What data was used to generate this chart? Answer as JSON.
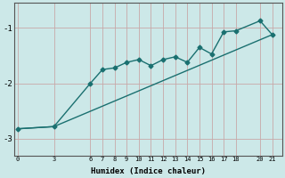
{
  "xlabel": "Humidex (Indice chaleur)",
  "bg_color": "#cce8e8",
  "line_color": "#1a7070",
  "grid_color": "#afd4d4",
  "series1_x": [
    0,
    3,
    6,
    7,
    8,
    9,
    10,
    11,
    12,
    13,
    14,
    15,
    16,
    17,
    18,
    20,
    21
  ],
  "series1_y": [
    -2.82,
    -2.78,
    -2.0,
    -1.75,
    -1.72,
    -1.62,
    -1.57,
    -1.68,
    -1.57,
    -1.52,
    -1.62,
    -1.35,
    -1.47,
    -1.07,
    -1.05,
    -0.87,
    -1.12
  ],
  "series2_x": [
    0,
    3,
    21
  ],
  "series2_y": [
    -2.82,
    -2.78,
    -1.12
  ],
  "xticks": [
    0,
    3,
    6,
    7,
    8,
    9,
    10,
    11,
    12,
    13,
    14,
    15,
    16,
    17,
    18,
    20,
    21
  ],
  "yticks": [
    -3,
    -2,
    -1
  ],
  "ylim": [
    -3.3,
    -0.55
  ],
  "xlim": [
    -0.3,
    21.8
  ]
}
